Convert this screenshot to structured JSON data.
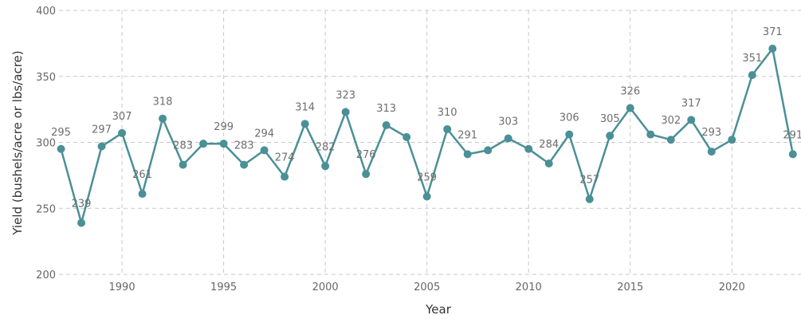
{
  "chart_data": {
    "type": "line",
    "xlabel": "Year",
    "ylabel": "Yield (bushels/acre or lbs/acre)",
    "xlim": [
      1986.9,
      2023.4
    ],
    "ylim": [
      200,
      400
    ],
    "xticks": [
      1990,
      1995,
      2000,
      2005,
      2010,
      2015,
      2020
    ],
    "yticks": [
      200,
      250,
      300,
      350,
      400
    ],
    "grid": true,
    "line_color": "#4a9096",
    "series": [
      {
        "points": [
          {
            "x": 1987,
            "y": 295,
            "label": "295"
          },
          {
            "x": 1988,
            "y": 239,
            "label": "239"
          },
          {
            "x": 1989,
            "y": 297,
            "label": "297"
          },
          {
            "x": 1990,
            "y": 307,
            "label": "307"
          },
          {
            "x": 1991,
            "y": 261,
            "label": "261"
          },
          {
            "x": 1992,
            "y": 318,
            "label": "318"
          },
          {
            "x": 1993,
            "y": 283,
            "label": "283"
          },
          {
            "x": 1994,
            "y": 299,
            "label": ""
          },
          {
            "x": 1995,
            "y": 299,
            "label": "299"
          },
          {
            "x": 1996,
            "y": 283,
            "label": "283"
          },
          {
            "x": 1997,
            "y": 294,
            "label": "294"
          },
          {
            "x": 1998,
            "y": 274,
            "label": "274"
          },
          {
            "x": 1999,
            "y": 314,
            "label": "314"
          },
          {
            "x": 2000,
            "y": 282,
            "label": "282"
          },
          {
            "x": 2001,
            "y": 323,
            "label": "323"
          },
          {
            "x": 2002,
            "y": 276,
            "label": "276"
          },
          {
            "x": 2003,
            "y": 313,
            "label": "313"
          },
          {
            "x": 2004,
            "y": 304,
            "label": ""
          },
          {
            "x": 2005,
            "y": 259,
            "label": "259"
          },
          {
            "x": 2006,
            "y": 310,
            "label": "310"
          },
          {
            "x": 2007,
            "y": 291,
            "label": "291"
          },
          {
            "x": 2008,
            "y": 294,
            "label": ""
          },
          {
            "x": 2009,
            "y": 303,
            "label": "303"
          },
          {
            "x": 2010,
            "y": 295,
            "label": ""
          },
          {
            "x": 2011,
            "y": 284,
            "label": "284"
          },
          {
            "x": 2012,
            "y": 306,
            "label": "306"
          },
          {
            "x": 2013,
            "y": 257,
            "label": "257"
          },
          {
            "x": 2014,
            "y": 305,
            "label": "305"
          },
          {
            "x": 2015,
            "y": 326,
            "label": "326"
          },
          {
            "x": 2016,
            "y": 306,
            "label": ""
          },
          {
            "x": 2017,
            "y": 302,
            "label": "302"
          },
          {
            "x": 2018,
            "y": 317,
            "label": "317"
          },
          {
            "x": 2019,
            "y": 293,
            "label": "293"
          },
          {
            "x": 2020,
            "y": 302,
            "label": ""
          },
          {
            "x": 2021,
            "y": 351,
            "label": "351"
          },
          {
            "x": 2022,
            "y": 371,
            "label": "371"
          },
          {
            "x": 2023,
            "y": 291,
            "label": "291"
          }
        ]
      }
    ]
  }
}
